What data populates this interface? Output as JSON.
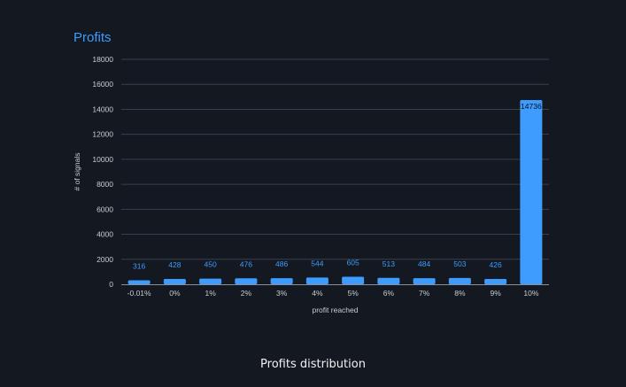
{
  "caption": "Profits distribution",
  "chart_data": {
    "type": "bar",
    "title": "Profits",
    "xlabel": "profit reached",
    "ylabel": "# of signals",
    "categories": [
      "-0.01%",
      "0%",
      "1%",
      "2%",
      "3%",
      "4%",
      "5%",
      "6%",
      "7%",
      "8%",
      "9%",
      "10%"
    ],
    "values": [
      316,
      428,
      450,
      476,
      486,
      544,
      605,
      513,
      484,
      503,
      426,
      14736
    ],
    "ylim": [
      0,
      18000
    ],
    "yticks": [
      0,
      2000,
      4000,
      6000,
      8000,
      10000,
      12000,
      14000,
      16000,
      18000
    ],
    "grid": true,
    "data_labels": true,
    "colors": {
      "bar": "#3d9cfd",
      "label": "#3b9cff",
      "title": "#3b9cff",
      "grid": "#3a3f4b",
      "axis_text": "#c8ccd4",
      "background": "#141821"
    }
  }
}
